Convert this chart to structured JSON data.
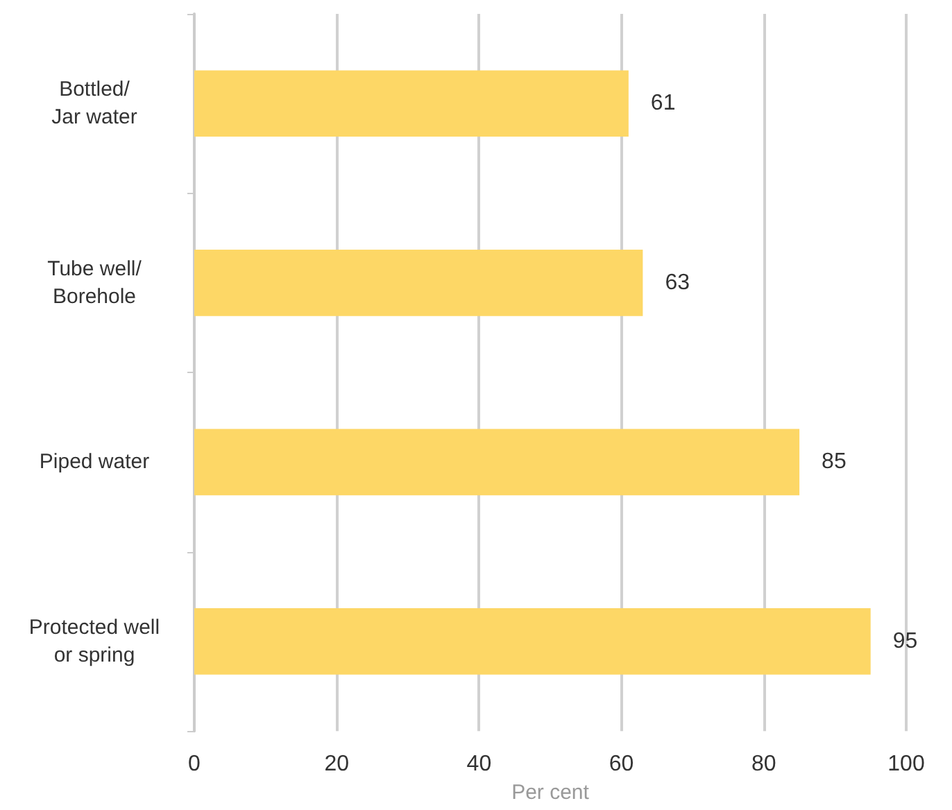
{
  "chart_data": {
    "type": "bar",
    "orientation": "horizontal",
    "categories": [
      "Bottled/\nJar water",
      "Tube well/\nBorehole",
      "Piped water",
      "Protected well\nor spring"
    ],
    "values": [
      61,
      63,
      85,
      95
    ],
    "color": "#fdd766",
    "xlabel": "Per cent",
    "xlim": [
      0,
      100
    ],
    "xticks": [
      0,
      20,
      40,
      60,
      80,
      100
    ],
    "grid": "x",
    "data_labels": true
  }
}
